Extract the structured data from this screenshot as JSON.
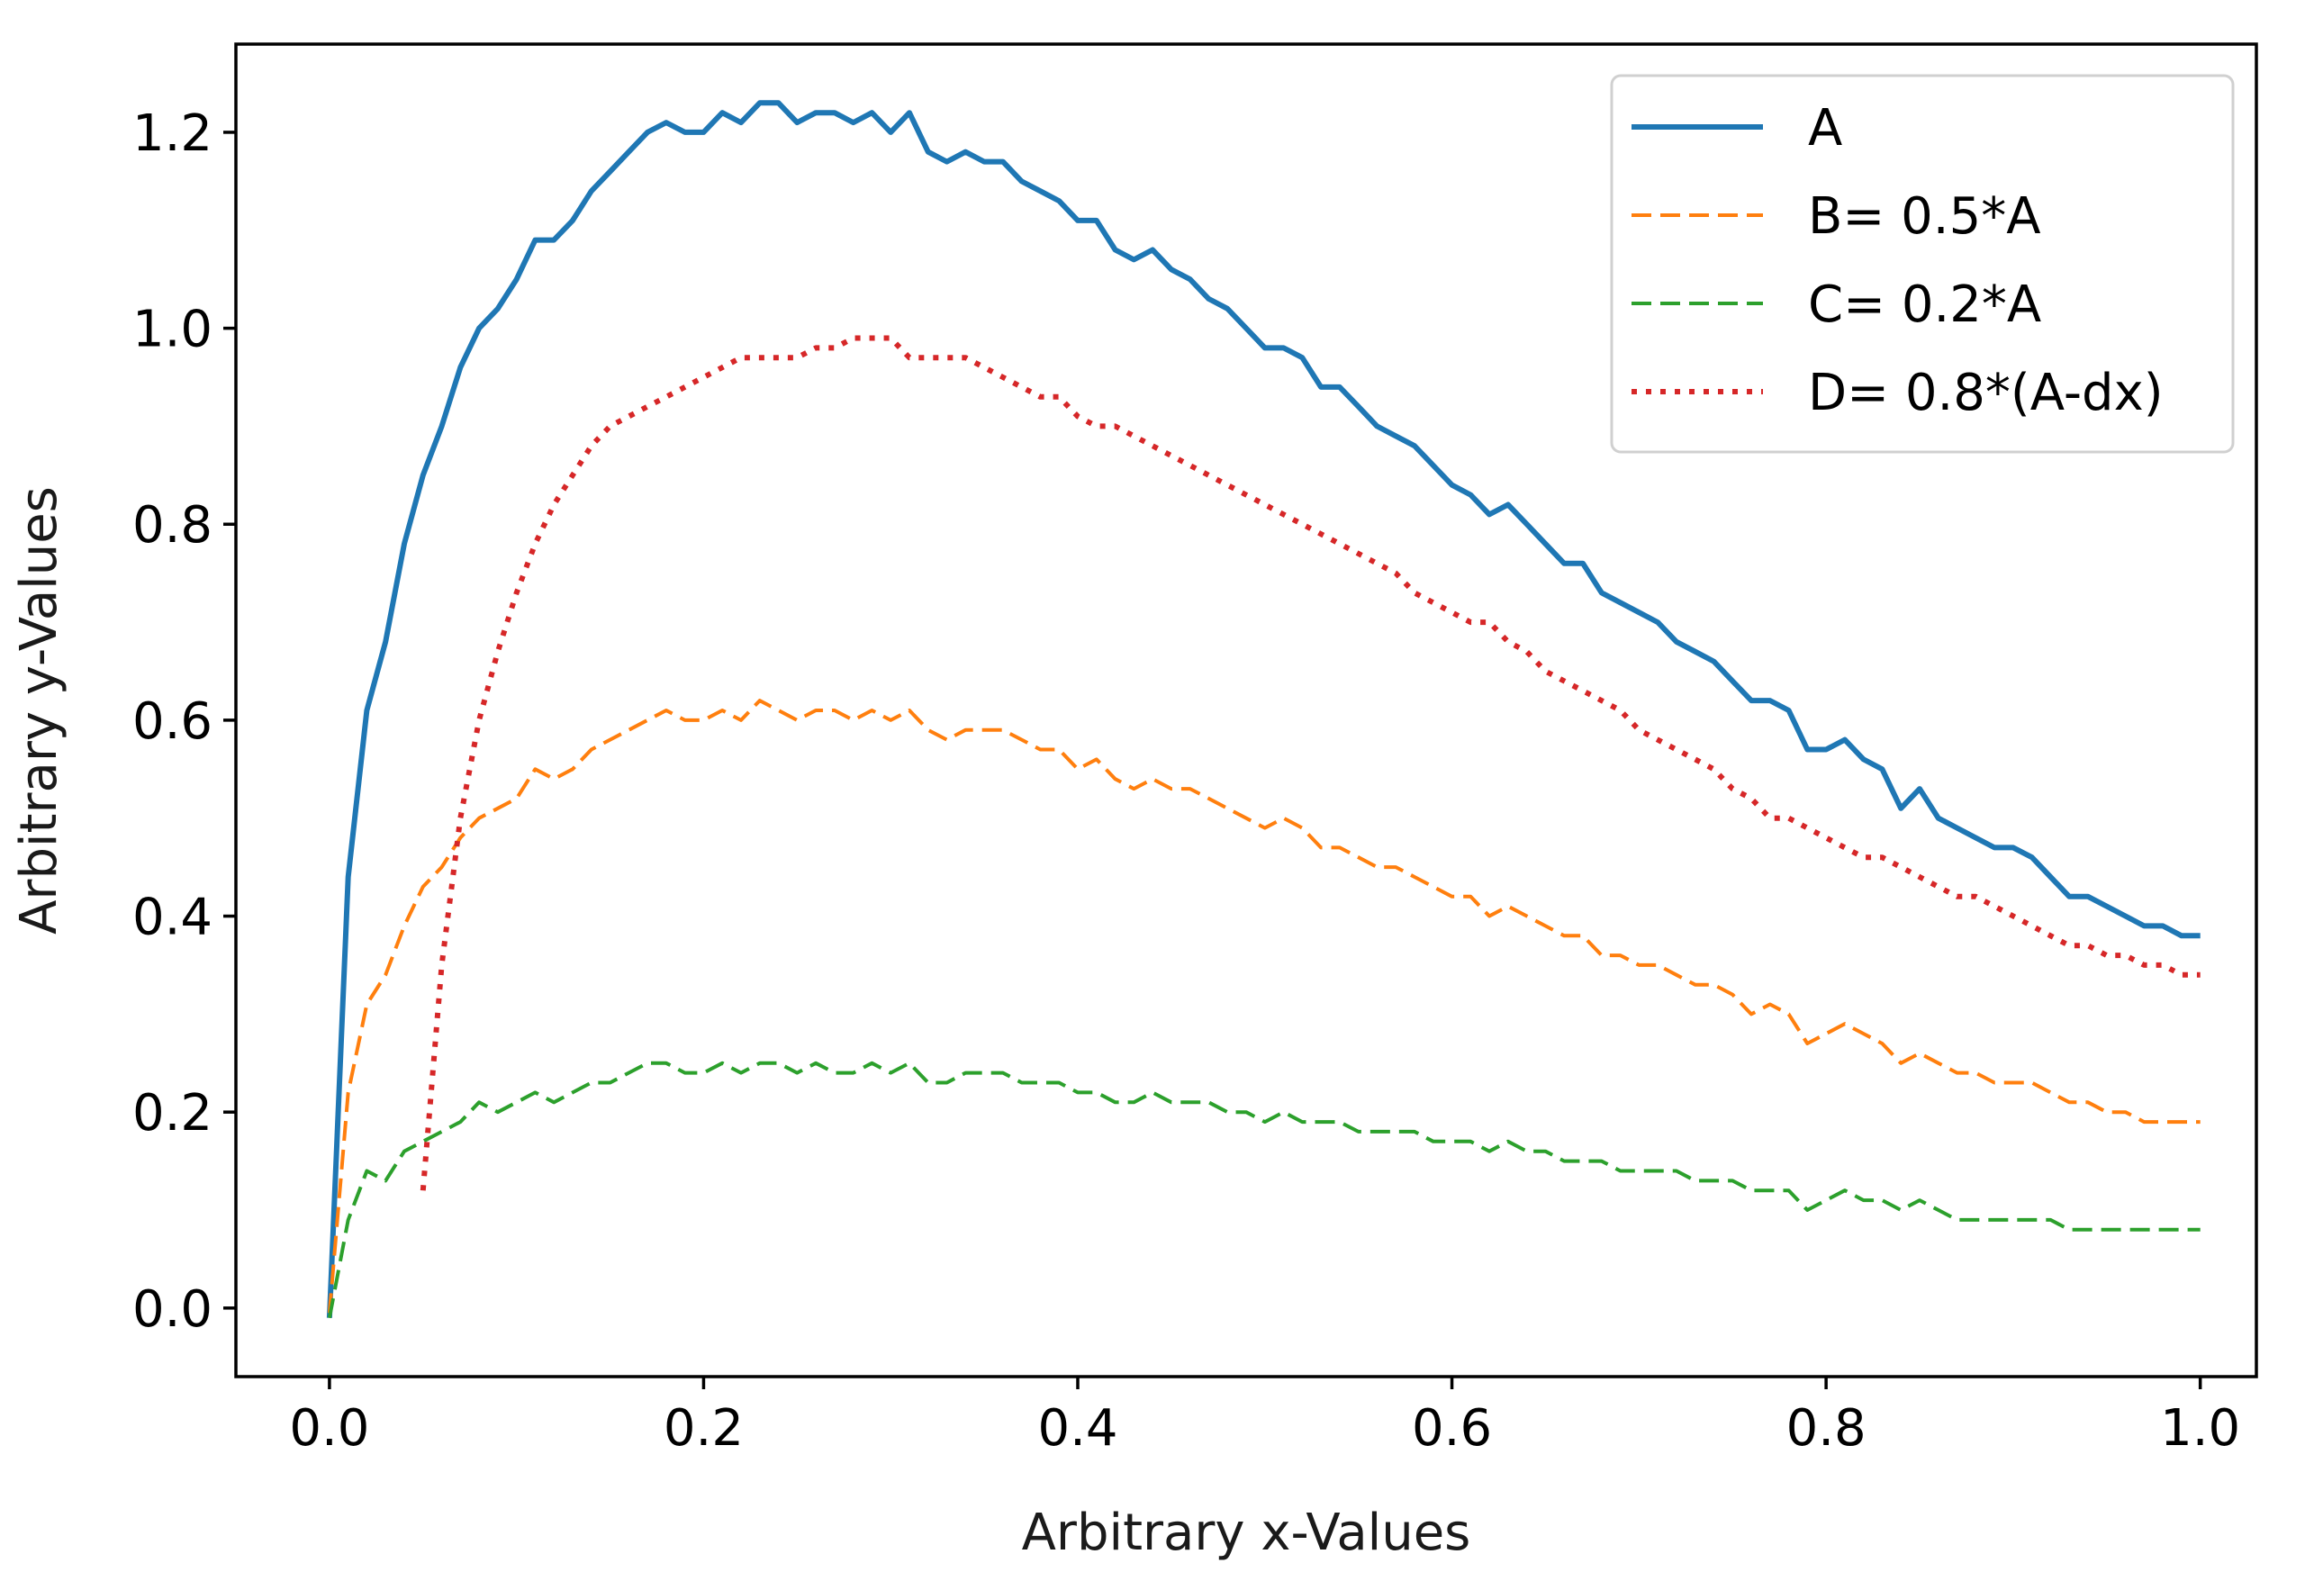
{
  "chart_data": {
    "type": "line",
    "title": "",
    "xlabel": "Arbitrary x-Values",
    "ylabel": "Arbitrary y-Values",
    "xlim": [
      -0.05,
      1.03
    ],
    "ylim": [
      -0.07,
      1.29
    ],
    "xticks": [
      0.0,
      0.2,
      0.4,
      0.6,
      0.8,
      1.0
    ],
    "xtick_labels": [
      "0.0",
      "0.2",
      "0.4",
      "0.6",
      "0.8",
      "1.0"
    ],
    "yticks": [
      0.0,
      0.2,
      0.4,
      0.6,
      0.8,
      1.0,
      1.2
    ],
    "ytick_labels": [
      "0.0",
      "0.2",
      "0.4",
      "0.6",
      "0.8",
      "1.0",
      "1.2"
    ],
    "grid": false,
    "legend_position": "top-right",
    "x": [
      0.0,
      0.01,
      0.02,
      0.03,
      0.04,
      0.05,
      0.06,
      0.07,
      0.08,
      0.09,
      0.1,
      0.11,
      0.12,
      0.13,
      0.14,
      0.15,
      0.16,
      0.17,
      0.18,
      0.19,
      0.2,
      0.21,
      0.22,
      0.23,
      0.24,
      0.25,
      0.26,
      0.27,
      0.28,
      0.29,
      0.3,
      0.31,
      0.32,
      0.33,
      0.34,
      0.35,
      0.36,
      0.37,
      0.38,
      0.39,
      0.4,
      0.41,
      0.42,
      0.43,
      0.44,
      0.45,
      0.46,
      0.47,
      0.48,
      0.49,
      0.5,
      0.51,
      0.52,
      0.53,
      0.54,
      0.55,
      0.56,
      0.57,
      0.58,
      0.59,
      0.6,
      0.61,
      0.62,
      0.63,
      0.64,
      0.65,
      0.66,
      0.67,
      0.68,
      0.69,
      0.7,
      0.71,
      0.72,
      0.73,
      0.74,
      0.75,
      0.76,
      0.77,
      0.78,
      0.79,
      0.8,
      0.81,
      0.82,
      0.83,
      0.84,
      0.85,
      0.86,
      0.87,
      0.88,
      0.89,
      0.9,
      0.91,
      0.92,
      0.93,
      0.94,
      0.95,
      0.96,
      0.97,
      0.98,
      0.99,
      1.0
    ],
    "series": [
      {
        "name": "A",
        "color": "#1f77b4",
        "dash": "solid",
        "values": [
          -0.01,
          0.44,
          0.61,
          0.68,
          0.78,
          0.85,
          0.9,
          0.96,
          1.0,
          1.02,
          1.05,
          1.09,
          1.09,
          1.11,
          1.14,
          1.16,
          1.18,
          1.2,
          1.21,
          1.2,
          1.2,
          1.22,
          1.21,
          1.23,
          1.23,
          1.21,
          1.22,
          1.22,
          1.21,
          1.22,
          1.2,
          1.22,
          1.18,
          1.17,
          1.18,
          1.17,
          1.17,
          1.15,
          1.14,
          1.13,
          1.11,
          1.11,
          1.08,
          1.07,
          1.08,
          1.06,
          1.05,
          1.03,
          1.02,
          1.0,
          0.98,
          0.98,
          0.97,
          0.94,
          0.94,
          0.92,
          0.9,
          0.89,
          0.88,
          0.86,
          0.84,
          0.83,
          0.81,
          0.82,
          0.8,
          0.78,
          0.76,
          0.76,
          0.73,
          0.72,
          0.71,
          0.7,
          0.68,
          0.67,
          0.66,
          0.64,
          0.62,
          0.62,
          0.61,
          0.57,
          0.57,
          0.58,
          0.56,
          0.55,
          0.51,
          0.53,
          0.5,
          0.49,
          0.48,
          0.47,
          0.47,
          0.46,
          0.44,
          0.42,
          0.42,
          0.41,
          0.4,
          0.39,
          0.39,
          0.38,
          0.38
        ]
      },
      {
        "name": "B= 0.5*A",
        "color": "#ff7f0e",
        "dash": "dashed",
        "values": [
          -0.005,
          0.22,
          0.31,
          0.34,
          0.39,
          0.43,
          0.45,
          0.48,
          0.5,
          0.51,
          0.52,
          0.55,
          0.54,
          0.55,
          0.57,
          0.58,
          0.59,
          0.6,
          0.61,
          0.6,
          0.6,
          0.61,
          0.6,
          0.62,
          0.61,
          0.6,
          0.61,
          0.61,
          0.6,
          0.61,
          0.6,
          0.61,
          0.59,
          0.58,
          0.59,
          0.59,
          0.59,
          0.58,
          0.57,
          0.57,
          0.55,
          0.56,
          0.54,
          0.53,
          0.54,
          0.53,
          0.53,
          0.52,
          0.51,
          0.5,
          0.49,
          0.5,
          0.49,
          0.47,
          0.47,
          0.46,
          0.45,
          0.45,
          0.44,
          0.43,
          0.42,
          0.42,
          0.4,
          0.41,
          0.4,
          0.39,
          0.38,
          0.38,
          0.36,
          0.36,
          0.35,
          0.35,
          0.34,
          0.33,
          0.33,
          0.32,
          0.3,
          0.31,
          0.3,
          0.27,
          0.28,
          0.29,
          0.28,
          0.27,
          0.25,
          0.26,
          0.25,
          0.24,
          0.24,
          0.23,
          0.23,
          0.23,
          0.22,
          0.21,
          0.21,
          0.2,
          0.2,
          0.19,
          0.19,
          0.19,
          0.19
        ]
      },
      {
        "name": "C= 0.2*A",
        "color": "#2ca02c",
        "dash": "dashed",
        "values": [
          -0.01,
          0.09,
          0.14,
          0.13,
          0.16,
          0.17,
          0.18,
          0.19,
          0.21,
          0.2,
          0.21,
          0.22,
          0.21,
          0.22,
          0.23,
          0.23,
          0.24,
          0.25,
          0.25,
          0.24,
          0.24,
          0.25,
          0.24,
          0.25,
          0.25,
          0.24,
          0.25,
          0.24,
          0.24,
          0.25,
          0.24,
          0.25,
          0.23,
          0.23,
          0.24,
          0.24,
          0.24,
          0.23,
          0.23,
          0.23,
          0.22,
          0.22,
          0.21,
          0.21,
          0.22,
          0.21,
          0.21,
          0.21,
          0.2,
          0.2,
          0.19,
          0.2,
          0.19,
          0.19,
          0.19,
          0.18,
          0.18,
          0.18,
          0.18,
          0.17,
          0.17,
          0.17,
          0.16,
          0.17,
          0.16,
          0.16,
          0.15,
          0.15,
          0.15,
          0.14,
          0.14,
          0.14,
          0.14,
          0.13,
          0.13,
          0.13,
          0.12,
          0.12,
          0.12,
          0.1,
          0.11,
          0.12,
          0.11,
          0.11,
          0.1,
          0.11,
          0.1,
          0.09,
          0.09,
          0.09,
          0.09,
          0.09,
          0.09,
          0.08,
          0.08,
          0.08,
          0.08,
          0.08,
          0.08,
          0.08,
          0.08
        ]
      },
      {
        "name": "D= 0.8*(A-dx)",
        "color": "#d62728",
        "dash": "dotted",
        "x": [
          0.05,
          0.06,
          0.07,
          0.08,
          0.09,
          0.1,
          0.11,
          0.12,
          0.13,
          0.14,
          0.15,
          0.16,
          0.17,
          0.18,
          0.19,
          0.2,
          0.21,
          0.22,
          0.23,
          0.24,
          0.25,
          0.26,
          0.27,
          0.28,
          0.29,
          0.3,
          0.31,
          0.32,
          0.33,
          0.34,
          0.35,
          0.36,
          0.37,
          0.38,
          0.39,
          0.4,
          0.41,
          0.42,
          0.43,
          0.44,
          0.45,
          0.46,
          0.47,
          0.48,
          0.49,
          0.5,
          0.51,
          0.52,
          0.53,
          0.54,
          0.55,
          0.56,
          0.57,
          0.58,
          0.59,
          0.6,
          0.61,
          0.62,
          0.63,
          0.64,
          0.65,
          0.66,
          0.67,
          0.68,
          0.69,
          0.7,
          0.71,
          0.72,
          0.73,
          0.74,
          0.75,
          0.76,
          0.77,
          0.78,
          0.79,
          0.8,
          0.81,
          0.82,
          0.83,
          0.84,
          0.85,
          0.86,
          0.87,
          0.88,
          0.89,
          0.9,
          0.91,
          0.92,
          0.93,
          0.94,
          0.95,
          0.96,
          0.97,
          0.98,
          0.99,
          1.0
        ],
        "values": [
          0.12,
          0.35,
          0.5,
          0.6,
          0.67,
          0.73,
          0.78,
          0.82,
          0.85,
          0.88,
          0.9,
          0.91,
          0.92,
          0.93,
          0.94,
          0.95,
          0.96,
          0.97,
          0.97,
          0.97,
          0.97,
          0.98,
          0.98,
          0.99,
          0.99,
          0.99,
          0.97,
          0.97,
          0.97,
          0.97,
          0.96,
          0.95,
          0.94,
          0.93,
          0.93,
          0.91,
          0.9,
          0.9,
          0.89,
          0.88,
          0.87,
          0.86,
          0.85,
          0.84,
          0.83,
          0.82,
          0.81,
          0.8,
          0.79,
          0.78,
          0.77,
          0.76,
          0.75,
          0.73,
          0.72,
          0.71,
          0.7,
          0.7,
          0.68,
          0.67,
          0.65,
          0.64,
          0.63,
          0.62,
          0.61,
          0.59,
          0.58,
          0.57,
          0.56,
          0.55,
          0.53,
          0.52,
          0.5,
          0.5,
          0.49,
          0.48,
          0.47,
          0.46,
          0.46,
          0.45,
          0.44,
          0.43,
          0.42,
          0.42,
          0.41,
          0.4,
          0.39,
          0.38,
          0.37,
          0.37,
          0.36,
          0.36,
          0.35,
          0.35,
          0.34,
          0.34
        ]
      }
    ]
  }
}
